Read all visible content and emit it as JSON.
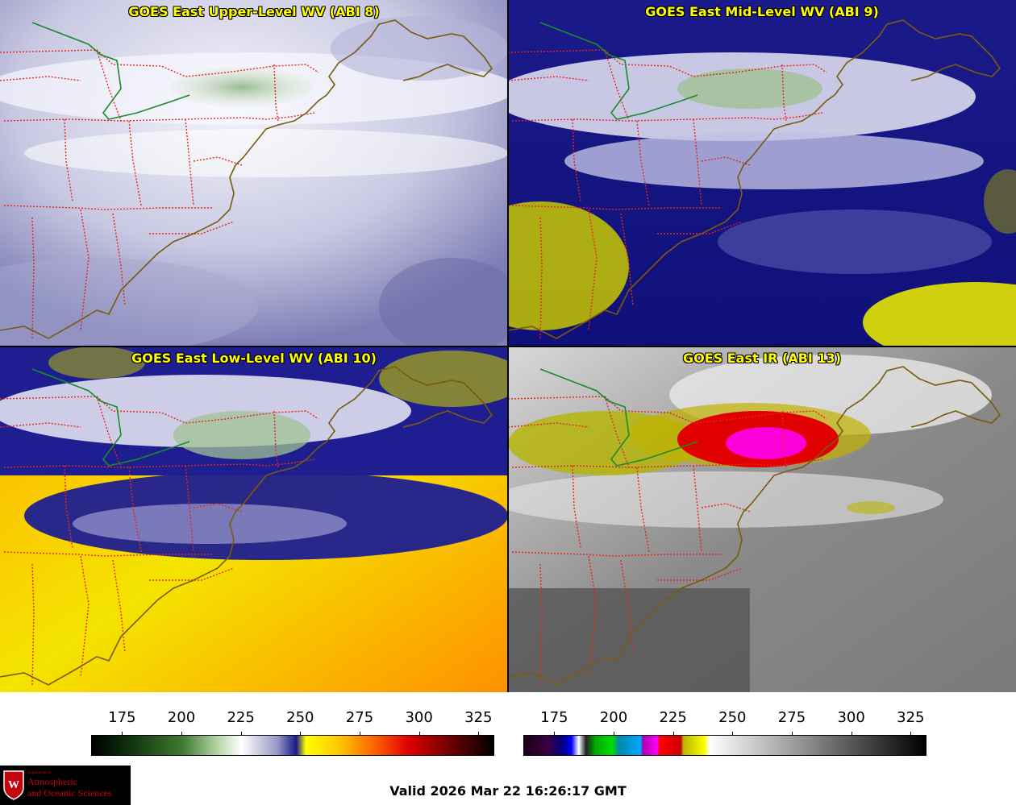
{
  "panels": [
    {
      "title": "GOES East Upper-Level WV (ABI 8)",
      "palette": "wv-upper"
    },
    {
      "title": "GOES East Mid-Level WV (ABI 9)",
      "palette": "wv-mid"
    },
    {
      "title": "GOES East Low-Level WV (ABI 10)",
      "palette": "wv-low"
    },
    {
      "title": "GOES East IR (ABI 13)",
      "palette": "ir"
    }
  ],
  "colorbars": [
    {
      "name": "wv-colorbar",
      "min": 162,
      "max": 331,
      "ticks": [
        "175",
        "200",
        "225",
        "250",
        "275",
        "300",
        "325"
      ],
      "stops": [
        {
          "v": 162,
          "c": "#000000"
        },
        {
          "v": 175,
          "c": "#0a2a08"
        },
        {
          "v": 200,
          "c": "#3d7a30"
        },
        {
          "v": 215,
          "c": "#b7d6a8"
        },
        {
          "v": 225,
          "c": "#ffffff"
        },
        {
          "v": 240,
          "c": "#9898c8"
        },
        {
          "v": 248,
          "c": "#1a1a8a"
        },
        {
          "v": 252,
          "c": "#ffff00"
        },
        {
          "v": 265,
          "c": "#ffcc00"
        },
        {
          "v": 280,
          "c": "#ff6a00"
        },
        {
          "v": 295,
          "c": "#e00000"
        },
        {
          "v": 315,
          "c": "#600000"
        },
        {
          "v": 331,
          "c": "#000000"
        }
      ]
    },
    {
      "name": "ir-colorbar",
      "min": 162,
      "max": 331,
      "ticks": [
        "175",
        "200",
        "225",
        "250",
        "275",
        "300",
        "325"
      ],
      "stops": [
        {
          "v": 162,
          "c": "#1a001a"
        },
        {
          "v": 172,
          "c": "#3a0040"
        },
        {
          "v": 178,
          "c": "#000080"
        },
        {
          "v": 182,
          "c": "#0000ff"
        },
        {
          "v": 185,
          "c": "#ffffff"
        },
        {
          "v": 188,
          "c": "#222222"
        },
        {
          "v": 192,
          "c": "#00aa00"
        },
        {
          "v": 199,
          "c": "#00dd00"
        },
        {
          "v": 202,
          "c": "#0088aa"
        },
        {
          "v": 211,
          "c": "#00aaff"
        },
        {
          "v": 212,
          "c": "#aa00aa"
        },
        {
          "v": 218,
          "c": "#ff00ff"
        },
        {
          "v": 219,
          "c": "#ff0000"
        },
        {
          "v": 228,
          "c": "#cc0000"
        },
        {
          "v": 229,
          "c": "#b5b500"
        },
        {
          "v": 238,
          "c": "#ffff00"
        },
        {
          "v": 240,
          "c": "#ffffff"
        },
        {
          "v": 331,
          "c": "#000000"
        }
      ]
    }
  ],
  "footer": {
    "valid": "Valid 2026 Mar 22 16:26:17 GMT",
    "logo_small": "Department of",
    "logo_line1": "Atmospheric",
    "logo_line2": "and Oceanic Sciences"
  }
}
